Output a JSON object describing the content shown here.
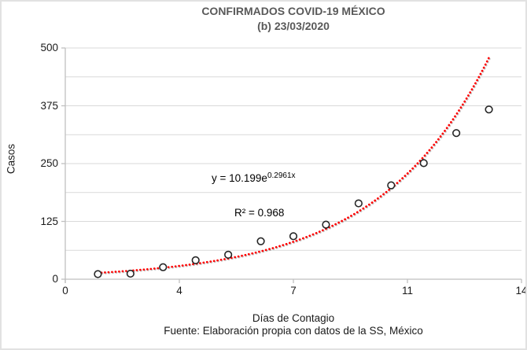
{
  "header": {
    "title_line1": "CONFIRMADOS COVID-19 MÉXICO",
    "title_line2": "(b) 23/03/2020"
  },
  "annotations": {
    "equation_prefix": "y = 10.199e",
    "equation_exponent": "0.2961x",
    "r_squared": "R² = 0.968"
  },
  "axes": {
    "y_label": "Casos",
    "x_label": "Días de Contagio"
  },
  "footer": {
    "source": "Fuente: Elaboración propia con datos de la SS, México"
  },
  "colors": {
    "title": "#595959",
    "text": "#1a1a1a",
    "trendline": "#ff0000",
    "gridline": "#d9d9d9",
    "axis": "#bfbfbf",
    "marker_stroke": "#262626",
    "marker_fill": "#ffffff"
  },
  "chart_data": {
    "type": "scatter",
    "title": "CONFIRMADOS COVID-19 MÉXICO (b) 23/03/2020",
    "xlabel": "Días de Contagio",
    "ylabel": "Casos",
    "x": [
      1,
      2,
      3,
      4,
      5,
      6,
      7,
      8,
      9,
      10,
      11,
      12,
      13
    ],
    "values": [
      11,
      12,
      26,
      41,
      53,
      82,
      93,
      118,
      164,
      203,
      251,
      316,
      367
    ],
    "xlim": [
      0,
      14
    ],
    "ylim": [
      0,
      500
    ],
    "x_ticks": [
      0,
      3.5,
      7,
      10.5,
      14
    ],
    "x_tick_labels": [
      "0",
      "4",
      "7",
      "11",
      "14"
    ],
    "y_ticks": [
      0,
      125,
      250,
      375,
      500
    ],
    "y_tick_labels": [
      "0",
      "125",
      "250",
      "375",
      "500"
    ],
    "y_minor_unit": 62.5,
    "grid": "horizontal",
    "legend": "none",
    "marker": "open-circle",
    "trendline": {
      "type": "exponential",
      "a": 10.199,
      "b": 0.2961,
      "equation": "y = 10.199e^(0.2961x)",
      "r2": 0.968,
      "x_range": [
        1,
        13
      ],
      "style": "dotted",
      "color": "#ff0000"
    }
  }
}
